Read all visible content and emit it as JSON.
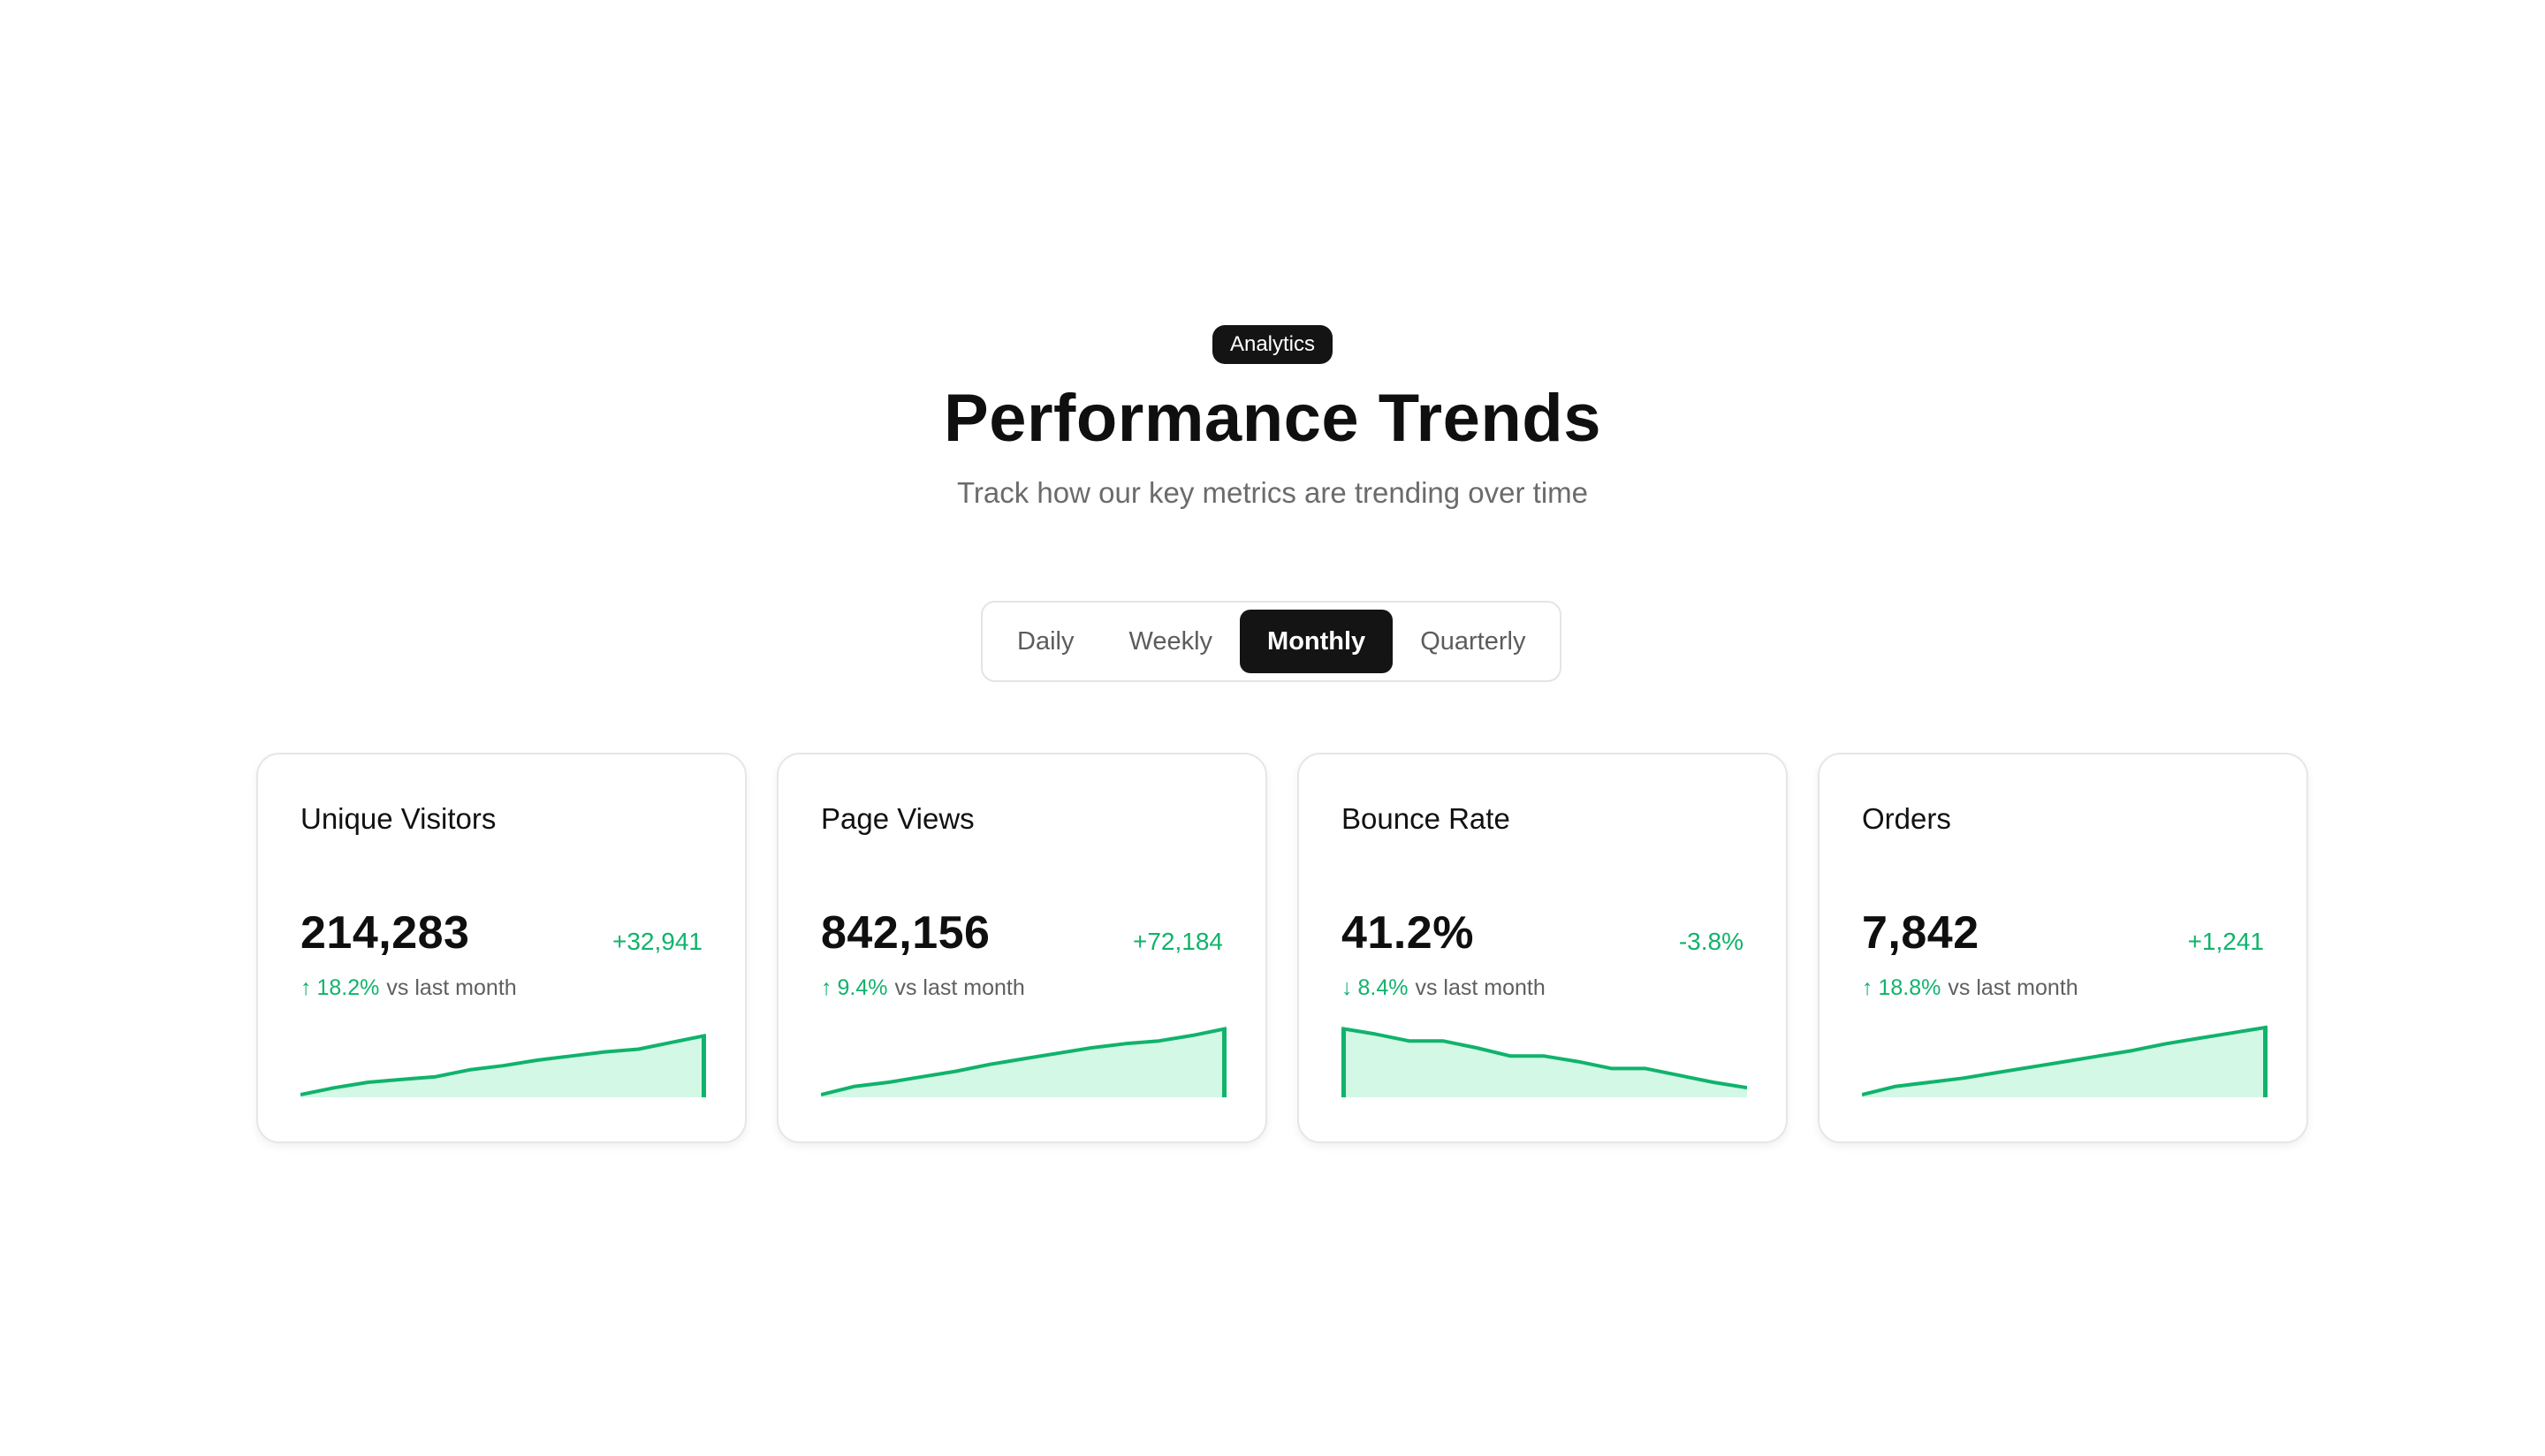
{
  "header": {
    "badge": "Analytics",
    "title": "Performance Trends",
    "subtitle": "Track how our key metrics are trending over time"
  },
  "tabs": [
    {
      "label": "Daily",
      "active": false
    },
    {
      "label": "Weekly",
      "active": false
    },
    {
      "label": "Monthly",
      "active": true
    },
    {
      "label": "Quarterly",
      "active": false
    }
  ],
  "colors": {
    "accent": "#10b36b",
    "area_fill": "#d3f8e6",
    "dark": "#141414"
  },
  "cards": [
    {
      "title": "Unique Visitors",
      "value": "214,283",
      "delta": "+32,941",
      "arrow": "↑",
      "pct": "18.2%",
      "comparison": "vs last month",
      "trend": [
        0,
        5,
        9,
        11,
        13,
        18,
        21,
        25,
        28,
        31,
        33,
        38,
        43
      ]
    },
    {
      "title": "Page Views",
      "value": "842,156",
      "delta": "+72,184",
      "arrow": "↑",
      "pct": "9.4%",
      "comparison": "vs last month",
      "trend": [
        0,
        6,
        9,
        13,
        17,
        22,
        26,
        30,
        34,
        37,
        39,
        43,
        48
      ]
    },
    {
      "title": "Bounce Rate",
      "value": "41.2%",
      "delta": "-3.8%",
      "arrow": "↓",
      "pct": "8.4%",
      "comparison": "vs last month",
      "trend": [
        48,
        44,
        39,
        39,
        34,
        28,
        28,
        24,
        19,
        19,
        14,
        9,
        5
      ]
    },
    {
      "title": "Orders",
      "value": "7,842",
      "delta": "+1,241",
      "arrow": "↑",
      "pct": "18.8%",
      "comparison": "vs last month",
      "trend": [
        0,
        6,
        9,
        12,
        16,
        20,
        24,
        28,
        32,
        37,
        41,
        45,
        49
      ]
    }
  ]
}
